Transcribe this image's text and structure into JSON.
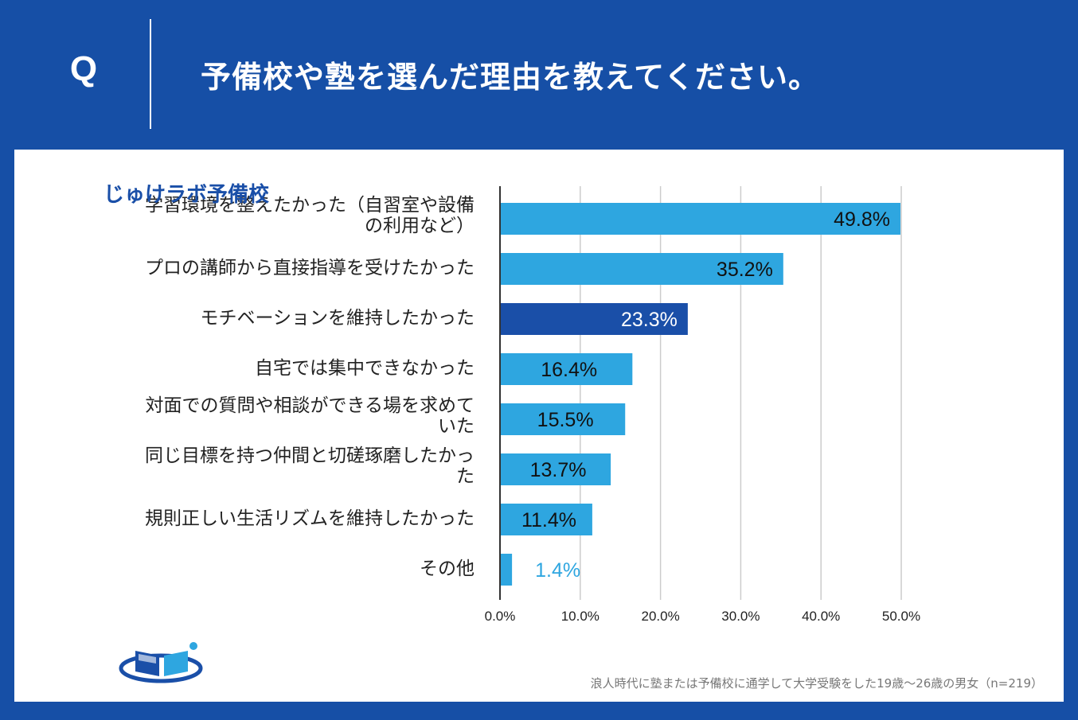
{
  "header": {
    "q_label": "Q",
    "question": "予備校や塾を選んだ理由を教えてください。"
  },
  "chart_data": {
    "type": "bar",
    "orientation": "horizontal",
    "title": "予備校や塾を選んだ理由を教えてください。",
    "categories": [
      "学習環境を整えたかった（自習室や設備の利用など）",
      "プロの講師から直接指導を受けたかった",
      "モチベーションを維持したかった",
      "自宅では集中できなかった",
      "対面での質問や相談ができる場を求めていた",
      "同じ目標を持つ仲間と切磋琢磨したかった",
      "規則正しい生活リズムを維持したかった",
      "その他"
    ],
    "category_lines": [
      [
        "学習環境を整えたかった（自習室や設備",
        "の利用など）"
      ],
      [
        "プロの講師から直接指導を受けたかった"
      ],
      [
        "モチベーションを維持したかった"
      ],
      [
        "自宅では集中できなかった"
      ],
      [
        "対面での質問や相談ができる場を求めて",
        "いた"
      ],
      [
        "同じ目標を持つ仲間と切磋琢磨したかっ",
        "た"
      ],
      [
        "規則正しい生活リズムを維持したかった"
      ],
      [
        "その他"
      ]
    ],
    "values": [
      49.8,
      35.2,
      23.3,
      16.4,
      15.5,
      13.7,
      11.4,
      1.4
    ],
    "value_labels": [
      "49.8%",
      "35.2%",
      "23.3%",
      "16.4%",
      "15.5%",
      "13.7%",
      "11.4%",
      "1.4%"
    ],
    "highlight_index": 2,
    "xlim": [
      0,
      50
    ],
    "xticks": [
      "0.0%",
      "10.0%",
      "20.0%",
      "30.0%",
      "40.0%",
      "50.0%"
    ],
    "grid": true,
    "xlabel": "",
    "ylabel": ""
  },
  "colors": {
    "background": "#164fa6",
    "bar": "#2ea6e0",
    "bar_highlight": "#1a4fa8",
    "grid": "#cccccc",
    "label_dark": "#111111",
    "label_light": "#ffffff",
    "label_outside": "#2ea6e0"
  },
  "logo": {
    "text": "じゅけラボ予備校"
  },
  "footnote": "浪人時代に塾または予備校に通学して大学受験をした19歳～26歳の男女（n=219）"
}
